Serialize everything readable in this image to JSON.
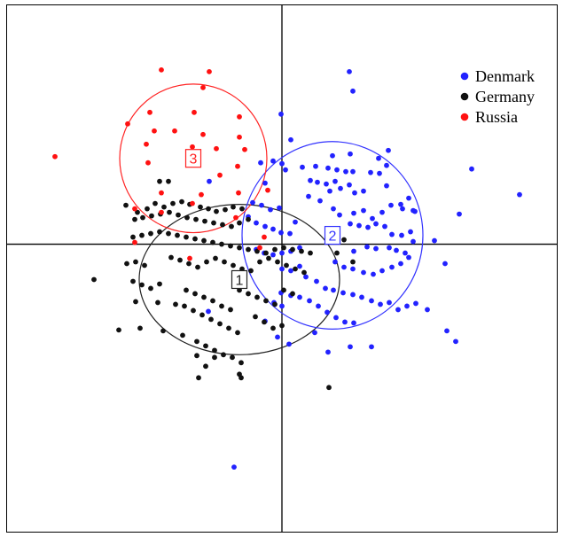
{
  "chart_data": {
    "type": "scatter",
    "xlim": [
      -310,
      310
    ],
    "ylim": [
      -325,
      270
    ],
    "grid": false,
    "legend_placement": "top-right",
    "series": [
      {
        "name": "Denmark",
        "color": "#2222ff",
        "points": [
          [
            76,
            195
          ],
          [
            80,
            173
          ],
          [
            -1,
            147
          ],
          [
            10,
            118
          ],
          [
            57,
            100
          ],
          [
            77,
            102
          ],
          [
            109,
            97
          ],
          [
            120,
            106
          ],
          [
            118,
            89
          ],
          [
            214,
            85
          ],
          [
            268,
            56
          ],
          [
            -10,
            94
          ],
          [
            -24,
            92
          ],
          [
            -19,
            69
          ],
          [
            0,
            91
          ],
          [
            4,
            84
          ],
          [
            23,
            87
          ],
          [
            38,
            88
          ],
          [
            52,
            86
          ],
          [
            62,
            84
          ],
          [
            72,
            82
          ],
          [
            80,
            82
          ],
          [
            100,
            81
          ],
          [
            110,
            80
          ],
          [
            32,
            72
          ],
          [
            40,
            70
          ],
          [
            50,
            68
          ],
          [
            60,
            71
          ],
          [
            66,
            63
          ],
          [
            76,
            67
          ],
          [
            54,
            60
          ],
          [
            82,
            58
          ],
          [
            92,
            60
          ],
          [
            118,
            66
          ],
          [
            136,
            40
          ],
          [
            150,
            37
          ],
          [
            200,
            34
          ],
          [
            30,
            54
          ],
          [
            43,
            49
          ],
          [
            58,
            40
          ],
          [
            65,
            33
          ],
          [
            81,
            35
          ],
          [
            92,
            38
          ],
          [
            102,
            29
          ],
          [
            113,
            36
          ],
          [
            123,
            44
          ],
          [
            134,
            45
          ],
          [
            143,
            52
          ],
          [
            148,
            38
          ],
          [
            -33,
            47
          ],
          [
            -23,
            44
          ],
          [
            -13,
            39
          ],
          [
            -3,
            41
          ],
          [
            -38,
            31
          ],
          [
            -29,
            24
          ],
          [
            -19,
            20
          ],
          [
            -10,
            17
          ],
          [
            -1,
            13
          ],
          [
            9,
            12
          ],
          [
            15,
            25
          ],
          [
            77,
            23
          ],
          [
            87,
            21
          ],
          [
            97,
            19
          ],
          [
            106,
            23
          ],
          [
            116,
            20
          ],
          [
            124,
            11
          ],
          [
            135,
            10
          ],
          [
            145,
            14
          ],
          [
            148,
            3
          ],
          [
            172,
            4
          ],
          [
            184,
            -22
          ],
          [
            81,
            -8
          ],
          [
            96,
            -3
          ],
          [
            106,
            -5
          ],
          [
            121,
            -4
          ],
          [
            129,
            -7
          ],
          [
            139,
            -10
          ],
          [
            -29,
            -6
          ],
          [
            -20,
            -10
          ],
          [
            -10,
            -12
          ],
          [
            0,
            -10
          ],
          [
            10,
            -8
          ],
          [
            20,
            -4
          ],
          [
            60,
            -20
          ],
          [
            70,
            -26
          ],
          [
            80,
            -28
          ],
          [
            92,
            -32
          ],
          [
            103,
            -34
          ],
          [
            113,
            -30
          ],
          [
            124,
            -26
          ],
          [
            134,
            -22
          ],
          [
            143,
            -15
          ],
          [
            0,
            -28
          ],
          [
            10,
            -30
          ],
          [
            20,
            -25
          ],
          [
            27,
            -37
          ],
          [
            39,
            -42
          ],
          [
            49,
            -50
          ],
          [
            58,
            -52
          ],
          [
            69,
            -55
          ],
          [
            80,
            -57
          ],
          [
            90,
            -60
          ],
          [
            101,
            -64
          ],
          [
            111,
            -68
          ],
          [
            121,
            -66
          ],
          [
            131,
            -74
          ],
          [
            141,
            -70
          ],
          [
            151,
            -67
          ],
          [
            164,
            -74
          ],
          [
            -1,
            -55
          ],
          [
            10,
            -58
          ],
          [
            20,
            -60
          ],
          [
            31,
            -64
          ],
          [
            41,
            -70
          ],
          [
            51,
            -77
          ],
          [
            61,
            -83
          ],
          [
            71,
            -88
          ],
          [
            81,
            -89
          ],
          [
            -9,
            -66
          ],
          [
            0,
            -70
          ],
          [
            -19,
            -87
          ],
          [
            -5,
            -105
          ],
          [
            8,
            -113
          ],
          [
            37,
            -100
          ],
          [
            52,
            -122
          ],
          [
            77,
            -116
          ],
          [
            101,
            -116
          ],
          [
            186,
            -98
          ],
          [
            196,
            -110
          ],
          [
            -83,
            -76
          ],
          [
            -54,
            -252
          ],
          [
            -82,
            71
          ]
        ]
      },
      {
        "name": "Germany",
        "color": "#111111",
        "points": [
          [
            -138,
            71
          ],
          [
            -128,
            71
          ],
          [
            -176,
            44
          ],
          [
            -163,
            36
          ],
          [
            -152,
            40
          ],
          [
            -143,
            46
          ],
          [
            -133,
            42
          ],
          [
            -123,
            46
          ],
          [
            -113,
            48
          ],
          [
            -104,
            45
          ],
          [
            -92,
            42
          ],
          [
            -83,
            40
          ],
          [
            -74,
            37
          ],
          [
            -64,
            39
          ],
          [
            -55,
            42
          ],
          [
            -45,
            40
          ],
          [
            -166,
            28
          ],
          [
            -157,
            30
          ],
          [
            -147,
            32
          ],
          [
            -137,
            34
          ],
          [
            -127,
            36
          ],
          [
            -117,
            33
          ],
          [
            -107,
            30
          ],
          [
            -97,
            28
          ],
          [
            -87,
            26
          ],
          [
            -77,
            24
          ],
          [
            -67,
            22
          ],
          [
            -57,
            20
          ],
          [
            -48,
            24
          ],
          [
            -38,
            28
          ],
          [
            -168,
            8
          ],
          [
            -158,
            10
          ],
          [
            -148,
            12
          ],
          [
            -138,
            14
          ],
          [
            -128,
            12
          ],
          [
            -118,
            10
          ],
          [
            -108,
            8
          ],
          [
            -98,
            6
          ],
          [
            -88,
            4
          ],
          [
            -78,
            2
          ],
          [
            -68,
            0
          ],
          [
            -58,
            -2
          ],
          [
            -48,
            -4
          ],
          [
            -38,
            -6
          ],
          [
            -28,
            -8
          ],
          [
            -18,
            -10
          ],
          [
            -8,
            -6
          ],
          [
            2,
            -4
          ],
          [
            12,
            -6
          ],
          [
            22,
            -8
          ],
          [
            32,
            -10
          ],
          [
            -175,
            -22
          ],
          [
            -165,
            -20
          ],
          [
            -155,
            -24
          ],
          [
            -125,
            -15
          ],
          [
            -115,
            -18
          ],
          [
            -105,
            -22
          ],
          [
            -95,
            -26
          ],
          [
            -85,
            -20
          ],
          [
            -75,
            -16
          ],
          [
            -65,
            -20
          ],
          [
            -55,
            -24
          ],
          [
            -45,
            -28
          ],
          [
            -35,
            -30
          ],
          [
            -25,
            -20
          ],
          [
            -15,
            -16
          ],
          [
            -5,
            -20
          ],
          [
            5,
            -24
          ],
          [
            15,
            -28
          ],
          [
            25,
            -32
          ],
          [
            -212,
            -40
          ],
          [
            -168,
            -42
          ],
          [
            -158,
            -46
          ],
          [
            -148,
            -50
          ],
          [
            -138,
            -45
          ],
          [
            -108,
            -52
          ],
          [
            -98,
            -56
          ],
          [
            -88,
            -60
          ],
          [
            -78,
            -64
          ],
          [
            -68,
            -70
          ],
          [
            -58,
            -74
          ],
          [
            -48,
            -52
          ],
          [
            -38,
            -56
          ],
          [
            -28,
            -60
          ],
          [
            -18,
            -64
          ],
          [
            -8,
            -68
          ],
          [
            2,
            -52
          ],
          [
            12,
            -56
          ],
          [
            -165,
            -65
          ],
          [
            -140,
            -66
          ],
          [
            -120,
            -68
          ],
          [
            -110,
            -70
          ],
          [
            -100,
            -75
          ],
          [
            -90,
            -80
          ],
          [
            -80,
            -85
          ],
          [
            -70,
            -90
          ],
          [
            -60,
            -95
          ],
          [
            -50,
            -100
          ],
          [
            -30,
            -82
          ],
          [
            -20,
            -88
          ],
          [
            -10,
            -95
          ],
          [
            0,
            -92
          ],
          [
            -184,
            -97
          ],
          [
            -160,
            -95
          ],
          [
            -134,
            -98
          ],
          [
            -112,
            -103
          ],
          [
            -96,
            -110
          ],
          [
            -86,
            -115
          ],
          [
            -76,
            -120
          ],
          [
            -66,
            -125
          ],
          [
            -56,
            -128
          ],
          [
            -46,
            -134
          ],
          [
            -96,
            -126
          ],
          [
            -86,
            -138
          ],
          [
            -76,
            -128
          ],
          [
            -48,
            -147
          ],
          [
            -94,
            -151
          ],
          [
            -46,
            -151
          ],
          [
            80,
            -20
          ],
          [
            53,
            -162
          ],
          [
            62,
            -10
          ],
          [
            70,
            5
          ]
        ]
      },
      {
        "name": "Russia",
        "color": "#ff1111",
        "points": [
          [
            -136,
            197
          ],
          [
            -82,
            195
          ],
          [
            -89,
            177
          ],
          [
            -149,
            149
          ],
          [
            -99,
            149
          ],
          [
            -48,
            144
          ],
          [
            -174,
            136
          ],
          [
            -144,
            128
          ],
          [
            -121,
            128
          ],
          [
            -89,
            124
          ],
          [
            -48,
            121
          ],
          [
            -153,
            113
          ],
          [
            -101,
            110
          ],
          [
            -74,
            108
          ],
          [
            -42,
            107
          ],
          [
            -256,
            99
          ],
          [
            -151,
            92
          ],
          [
            -50,
            88
          ],
          [
            -16,
            61
          ],
          [
            -136,
            58
          ],
          [
            -91,
            56
          ],
          [
            -49,
            58
          ],
          [
            -166,
            40
          ],
          [
            -136,
            36
          ],
          [
            -101,
            46
          ],
          [
            -52,
            30
          ],
          [
            -166,
            2
          ],
          [
            -104,
            -16
          ],
          [
            -25,
            -4
          ],
          [
            -20,
            8
          ],
          [
            -70,
            78
          ]
        ]
      }
    ],
    "ellipses": [
      {
        "label": "1",
        "color": "#222222",
        "cx": -48,
        "cy": -40,
        "rx": 113,
        "ry": 85
      },
      {
        "label": "2",
        "color": "#3333ff",
        "cx": 57,
        "cy": 10,
        "rx": 102,
        "ry": 106
      },
      {
        "label": "3",
        "color": "#ff2222",
        "cx": -100,
        "cy": 97,
        "rx": 83,
        "ry": 84
      }
    ]
  }
}
